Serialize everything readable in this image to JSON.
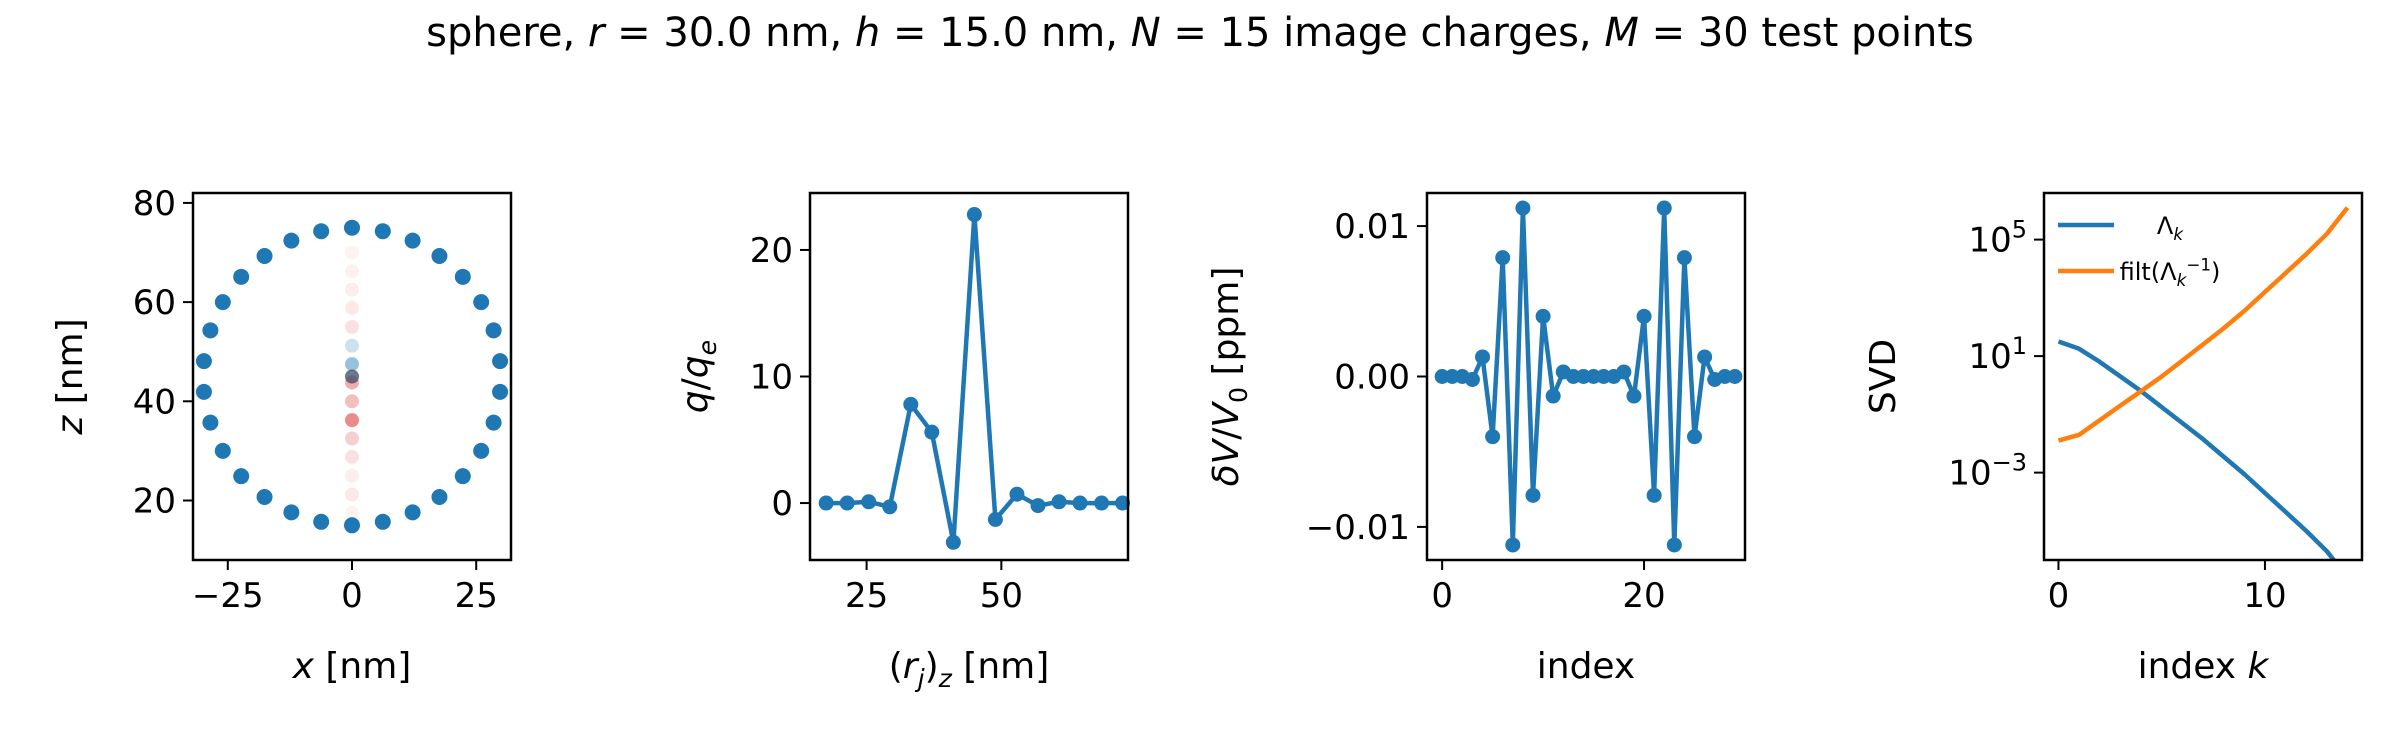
{
  "figure": {
    "title_parts": [
      {
        "t": "sphere, "
      },
      {
        "t": "r",
        "i": true
      },
      {
        "t": " = 30.0 nm, "
      },
      {
        "t": "h",
        "i": true
      },
      {
        "t": " = 15.0 nm, "
      },
      {
        "t": "N",
        "i": true
      },
      {
        "t": " = 15 image charges, "
      },
      {
        "t": "M",
        "i": true
      },
      {
        "t": " = 30 test points"
      }
    ]
  },
  "colors": {
    "blue": "#1f77b4",
    "orange": "#ff7f0e",
    "axis": "#000000"
  },
  "chart_data": [
    {
      "type": "scatter",
      "xlabel": "x [nm]",
      "ylabel": "z [nm]",
      "xlim": [
        -32,
        32
      ],
      "ylim": [
        8,
        82
      ],
      "xticks": [
        -25,
        0,
        25
      ],
      "xtick_labels": [
        "−25",
        "0",
        "25"
      ],
      "yticks": [
        20,
        40,
        60,
        80
      ],
      "ytick_labels": [
        "20",
        "40",
        "60",
        "80"
      ],
      "series": [
        {
          "role": "test-points",
          "x": [
            0.0,
            6.2,
            12.2,
            17.6,
            22.3,
            26.0,
            28.5,
            29.8,
            29.8,
            28.5,
            26.0,
            22.3,
            17.6,
            12.2,
            6.2,
            0.0,
            -6.2,
            -12.2,
            -17.6,
            -22.3,
            -26.0,
            -28.5,
            -29.8,
            -29.8,
            -28.5,
            -26.0,
            -22.3,
            -17.6,
            -12.2,
            -6.2
          ],
          "y": [
            75.0,
            74.3,
            72.4,
            69.3,
            65.1,
            60.0,
            54.3,
            48.1,
            41.9,
            35.7,
            30.0,
            24.9,
            20.7,
            17.6,
            15.7,
            15.0,
            15.7,
            17.6,
            20.7,
            24.9,
            30.0,
            35.7,
            41.9,
            48.1,
            54.3,
            60.0,
            65.1,
            69.3,
            72.4,
            74.3
          ]
        },
        {
          "role": "image-charges",
          "x": [
            0,
            0,
            0,
            0,
            0,
            0,
            0,
            0,
            0,
            0,
            0,
            0,
            0,
            0,
            0
          ],
          "y": [
            17.5,
            21.2,
            25.0,
            28.8,
            32.5,
            36.2,
            40.0,
            43.8,
            47.5,
            51.2,
            55.0,
            58.8,
            62.5,
            66.2,
            70.0
          ],
          "q": [
            0.0,
            0.05,
            0.02,
            0.1,
            0.2,
            0.6,
            0.3,
            0.4,
            -0.5,
            -0.2,
            0.1,
            0.05,
            0.02,
            0.01,
            0.0
          ]
        }
      ]
    },
    {
      "type": "line",
      "xlabel": "(r_j)_z [nm]",
      "ylabel": "q/q_e",
      "xlim": [
        14.5,
        73.5
      ],
      "ylim": [
        -4.5,
        24.5
      ],
      "xticks": [
        25,
        50
      ],
      "xtick_labels": [
        "25",
        "50"
      ],
      "yticks": [
        0,
        10,
        20
      ],
      "ytick_labels": [
        "0",
        "10",
        "20"
      ],
      "x": [
        17.5,
        21.4,
        25.4,
        29.3,
        33.2,
        37.1,
        41.1,
        45.0,
        48.9,
        52.9,
        56.8,
        60.7,
        64.6,
        68.6,
        72.5
      ],
      "y": [
        0.0,
        0.0,
        0.1,
        -0.3,
        7.8,
        5.6,
        -3.1,
        22.8,
        -1.3,
        0.7,
        -0.2,
        0.1,
        0.0,
        0.0,
        0.0
      ]
    },
    {
      "type": "line",
      "xlabel": "index",
      "ylabel": "δV/V_0 [ppm]",
      "xlim": [
        -1.5,
        30
      ],
      "ylim": [
        -0.0122,
        0.0122
      ],
      "xticks": [
        0,
        20
      ],
      "xtick_labels": [
        "0",
        "20"
      ],
      "yticks": [
        -0.01,
        0.0,
        0.01
      ],
      "ytick_labels": [
        "−0.01",
        "0.00",
        "0.01"
      ],
      "x": [
        0,
        1,
        2,
        3,
        4,
        5,
        6,
        7,
        8,
        9,
        10,
        11,
        12,
        13,
        14,
        15,
        16,
        17,
        18,
        19,
        20,
        21,
        22,
        23,
        24,
        25,
        26,
        27,
        28,
        29
      ],
      "y": [
        0.0,
        0.0,
        0.0,
        -0.0002,
        0.0013,
        -0.004,
        0.0079,
        -0.0112,
        0.0112,
        -0.0079,
        0.004,
        -0.0013,
        0.0003,
        0.0,
        0.0,
        0.0,
        0.0,
        0.0,
        0.0003,
        -0.0013,
        0.004,
        -0.0079,
        0.0112,
        -0.0112,
        0.0079,
        -0.004,
        0.0013,
        -0.0002,
        0.0,
        0.0
      ]
    },
    {
      "type": "line",
      "log_y": true,
      "xlabel": "index k",
      "ylabel": "SVD",
      "xlim": [
        -0.7,
        14.7
      ],
      "ylim_log10": [
        -6.0,
        6.6
      ],
      "xticks": [
        0,
        10
      ],
      "xtick_labels": [
        "0",
        "10"
      ],
      "yticks_log10": [
        -3,
        1,
        5
      ],
      "legend_loc": "upper-left",
      "series": [
        {
          "name": "Λ_k",
          "color": "blue",
          "x": [
            0,
            1,
            2,
            3,
            4,
            5,
            6,
            7,
            8,
            9,
            10,
            11,
            12,
            13,
            14
          ],
          "log10_y": [
            1.5,
            1.25,
            0.8,
            0.3,
            -0.2,
            -0.75,
            -1.3,
            -1.85,
            -2.45,
            -3.05,
            -3.7,
            -4.35,
            -5.0,
            -5.7,
            -6.6
          ]
        },
        {
          "name": "filt(Λ_k^−1)",
          "color": "orange",
          "x": [
            0,
            1,
            2,
            3,
            4,
            5,
            6,
            7,
            8,
            9,
            10,
            11,
            12,
            13,
            14
          ],
          "log10_y": [
            -1.9,
            -1.7,
            -1.2,
            -0.7,
            -0.2,
            0.3,
            0.85,
            1.4,
            1.95,
            2.55,
            3.2,
            3.85,
            4.5,
            5.2,
            6.1
          ]
        }
      ]
    }
  ]
}
